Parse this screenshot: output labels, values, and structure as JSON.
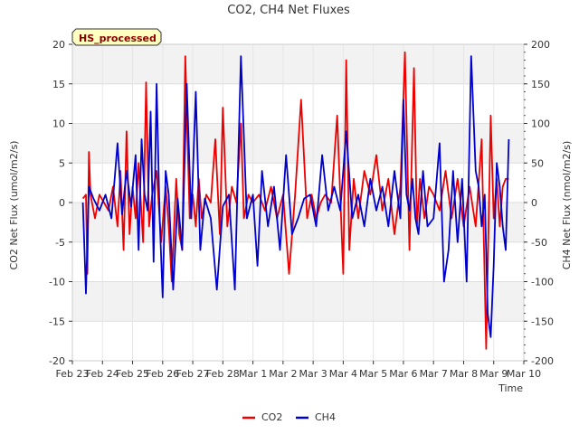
{
  "chart_data": {
    "type": "line",
    "title": "CO2, CH4 Net Fluxes",
    "xlabel": "Time",
    "ylabel_left": "CO2 Net Flux (umol/m2/s)",
    "ylabel_right": "CH4 Net Flux (nmol/m2/s)",
    "badge": "HS_processed",
    "x_ticks": [
      "Feb 23",
      "Feb 24",
      "Feb 25",
      "Feb 26",
      "Feb 27",
      "Feb 28",
      "Mar 1",
      "Mar 2",
      "Mar 3",
      "Mar 4",
      "Mar 5",
      "Mar 6",
      "Mar 7",
      "Mar 8",
      "Mar 9",
      "Mar 10"
    ],
    "xlim": [
      0,
      15
    ],
    "ylim_left": [
      -20,
      20
    ],
    "ylim_right": [
      -200,
      200
    ],
    "yticks_left": [
      -20,
      -15,
      -10,
      -5,
      0,
      5,
      10,
      15,
      20
    ],
    "yticks_right": [
      -200,
      -150,
      -100,
      -50,
      0,
      50,
      100,
      150,
      200
    ],
    "series": [
      {
        "name": "CO2",
        "axis": "left",
        "color": "#ee0000",
        "x": [
          0.35,
          0.45,
          0.5,
          0.55,
          0.6,
          0.75,
          0.9,
          1.05,
          1.2,
          1.35,
          1.5,
          1.6,
          1.7,
          1.8,
          1.9,
          2.0,
          2.1,
          2.2,
          2.35,
          2.45,
          2.55,
          2.65,
          2.8,
          2.95,
          3.1,
          3.2,
          3.3,
          3.45,
          3.55,
          3.65,
          3.75,
          3.9,
          4.0,
          4.1,
          4.2,
          4.3,
          4.45,
          4.6,
          4.75,
          4.9,
          5.0,
          5.15,
          5.3,
          5.45,
          5.6,
          5.7,
          5.85,
          6.0,
          6.2,
          6.4,
          6.6,
          6.8,
          7.0,
          7.2,
          7.4,
          7.6,
          7.8,
          7.95,
          8.1,
          8.25,
          8.4,
          8.6,
          8.8,
          9.0,
          9.1,
          9.2,
          9.35,
          9.5,
          9.7,
          9.9,
          10.1,
          10.3,
          10.5,
          10.7,
          10.9,
          11.05,
          11.2,
          11.35,
          11.45,
          11.55,
          11.7,
          11.85,
          12.0,
          12.2,
          12.4,
          12.6,
          12.8,
          13.0,
          13.2,
          13.4,
          13.6,
          13.75,
          13.9,
          14.0,
          14.1,
          14.2,
          14.3,
          14.4,
          14.5
        ],
        "y": [
          0.5,
          1,
          -9,
          6.4,
          1,
          -2,
          1,
          0,
          -1,
          2,
          -3,
          4,
          -6,
          9,
          -4,
          2,
          -2,
          5,
          -5,
          15.2,
          -3,
          1,
          4,
          -5,
          2,
          -3,
          -10,
          3,
          -4,
          -6,
          18.5,
          -2,
          1,
          -3,
          3,
          -2,
          1,
          0,
          8,
          -4,
          12,
          -3,
          2,
          0,
          10,
          -2,
          1,
          0,
          1,
          -1,
          2,
          -2,
          1,
          -9,
          1,
          13,
          -2,
          1,
          -2,
          0,
          1,
          0,
          11,
          -9,
          18,
          -6,
          3,
          -2,
          4,
          1,
          6,
          -1,
          3,
          -4,
          2,
          19,
          -6,
          17,
          -3,
          3,
          -2,
          2,
          1,
          -1,
          4,
          -2,
          3,
          -3,
          2,
          -3,
          8,
          -18.5,
          11,
          -2,
          3,
          -3,
          2,
          3,
          3
        ]
      },
      {
        "name": "CH4",
        "axis": "right",
        "color": "#0000cc",
        "x": [
          0.35,
          0.45,
          0.55,
          0.7,
          0.9,
          1.1,
          1.3,
          1.5,
          1.65,
          1.8,
          1.95,
          2.1,
          2.2,
          2.3,
          2.4,
          2.5,
          2.6,
          2.7,
          2.8,
          2.9,
          3.0,
          3.1,
          3.2,
          3.35,
          3.5,
          3.65,
          3.8,
          3.95,
          4.1,
          4.25,
          4.4,
          4.6,
          4.8,
          5.0,
          5.2,
          5.4,
          5.6,
          5.8,
          6.0,
          6.15,
          6.3,
          6.5,
          6.7,
          6.9,
          7.1,
          7.3,
          7.5,
          7.7,
          7.9,
          8.1,
          8.3,
          8.5,
          8.7,
          8.9,
          9.1,
          9.3,
          9.5,
          9.7,
          9.9,
          10.1,
          10.3,
          10.5,
          10.7,
          10.9,
          11.0,
          11.1,
          11.2,
          11.3,
          11.4,
          11.5,
          11.65,
          11.8,
          12.0,
          12.2,
          12.35,
          12.5,
          12.65,
          12.8,
          12.95,
          13.1,
          13.25,
          13.4,
          13.5,
          13.6,
          13.7,
          13.8,
          13.9,
          14.0,
          14.1,
          14.2,
          14.3,
          14.4,
          14.5
        ],
        "y": [
          0,
          -115,
          20,
          5,
          -10,
          10,
          -20,
          75,
          -15,
          40,
          -5,
          60,
          -60,
          80,
          10,
          -10,
          115,
          -75,
          150,
          -20,
          -120,
          40,
          10,
          -110,
          5,
          -60,
          150,
          -20,
          140,
          -60,
          5,
          -20,
          -110,
          -5,
          10,
          -110,
          185,
          -20,
          10,
          -80,
          40,
          -30,
          20,
          -60,
          60,
          -40,
          -20,
          5,
          10,
          -30,
          60,
          -10,
          20,
          -10,
          90,
          -20,
          10,
          -30,
          30,
          -10,
          20,
          -30,
          40,
          -20,
          130,
          10,
          -10,
          30,
          -20,
          -40,
          40,
          -30,
          -20,
          75,
          -100,
          -60,
          40,
          -50,
          30,
          -100,
          185,
          40,
          20,
          -30,
          10,
          -140,
          -170,
          -80,
          50,
          20,
          -30,
          -60,
          80
        ]
      }
    ]
  }
}
